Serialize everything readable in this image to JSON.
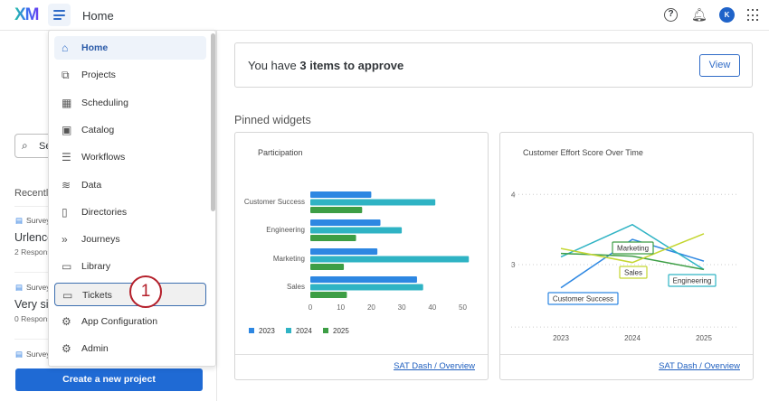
{
  "header": {
    "logo": "XM",
    "title": "Home"
  },
  "left": {
    "search_placeholder": "Se",
    "recently": "Recently",
    "items": [
      {
        "type": "Survey",
        "name": "Urlenco",
        "responses": "2 Respons"
      },
      {
        "type": "Survey",
        "name": "Very sir",
        "responses": "0 Respons"
      },
      {
        "type": "Survey"
      }
    ],
    "create_label": "Create a new project"
  },
  "menu": {
    "items": [
      {
        "label": "Home",
        "icon": "home-icon"
      },
      {
        "label": "Projects",
        "icon": "projects-icon"
      },
      {
        "label": "Scheduling",
        "icon": "calendar-icon"
      },
      {
        "label": "Catalog",
        "icon": "catalog-icon"
      },
      {
        "label": "Workflows",
        "icon": "workflows-icon"
      },
      {
        "label": "Data",
        "icon": "database-icon"
      },
      {
        "label": "Directories",
        "icon": "directories-icon"
      },
      {
        "label": "Journeys",
        "icon": "journeys-icon"
      },
      {
        "label": "Library",
        "icon": "library-icon"
      },
      {
        "label": "Tickets",
        "icon": "ticket-icon"
      },
      {
        "label": "App Configuration",
        "icon": "app-config-icon"
      },
      {
        "label": "Admin",
        "icon": "gears-icon"
      }
    ],
    "active": "Home",
    "highlighted": "Tickets",
    "step_badge": "1"
  },
  "approve": {
    "prefix": "You have ",
    "bold": "3 items to approve",
    "button": "View"
  },
  "pinned_title": "Pinned widgets",
  "widgets": [
    {
      "title": "Participation",
      "link": "SAT Dash / Overview"
    },
    {
      "title": "Customer Effort Score Over Time",
      "link": "SAT Dash / Overview"
    }
  ],
  "chart_data": [
    {
      "type": "bar",
      "orientation": "horizontal",
      "title": "Participation",
      "categories": [
        "Customer Success",
        "Engineering",
        "Marketing",
        "Sales"
      ],
      "series": [
        {
          "name": "2023",
          "color": "#2d87e2",
          "values": [
            20,
            23,
            22,
            35
          ]
        },
        {
          "name": "2024",
          "color": "#2fb3c4",
          "values": [
            41,
            30,
            52,
            37
          ]
        },
        {
          "name": "2025",
          "color": "#3d9e45",
          "values": [
            17,
            15,
            11,
            12
          ]
        }
      ],
      "xticks": [
        0,
        10,
        20,
        30,
        40,
        50
      ],
      "xlim": [
        0,
        52
      ],
      "legend": "bottom-left"
    },
    {
      "type": "line",
      "title": "Customer Effort Score Over Time",
      "x": [
        "2023",
        "2024",
        "2025"
      ],
      "yticks": [
        3,
        4
      ],
      "ylim": [
        2.1,
        4
      ],
      "grid": true,
      "series": [
        {
          "name": "Customer Success",
          "color": "#2d87e2",
          "values": [
            2.67,
            3.36,
            3.05
          ]
        },
        {
          "name": "Engineering",
          "color": "#2fb3c4",
          "values": [
            3.11,
            3.57,
            2.93
          ]
        },
        {
          "name": "Marketing",
          "color": "#3d9e45",
          "values": [
            3.16,
            3.12,
            2.93
          ]
        },
        {
          "name": "Sales",
          "color": "#c4d630",
          "values": [
            3.23,
            3.03,
            3.44
          ]
        }
      ]
    }
  ]
}
